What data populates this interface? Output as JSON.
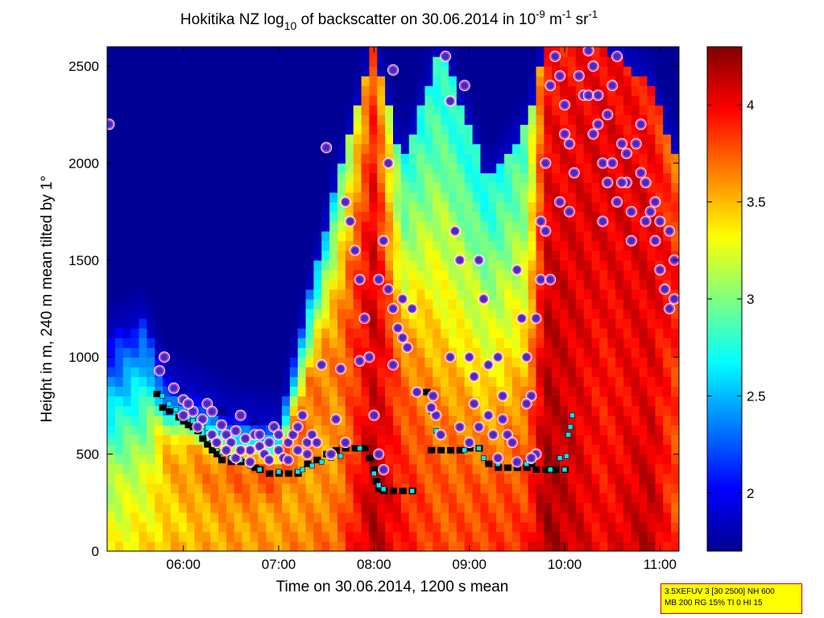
{
  "chart_data": {
    "type": "heatmap",
    "title": {
      "pre": "Hokitika NZ log",
      "sub": "10",
      "mid": " of backscatter on 30.06.2014 in 10",
      "sup1": "-9",
      "mid2": " m",
      "sup2": "-1",
      "mid3": " sr",
      "sup3": "-1"
    },
    "xlabel": "Time on 30.06.2014, 1200 s mean",
    "ylabel": "Height in m, 240 m mean tilted by 1°",
    "x_axis": {
      "range_hours": [
        5.2,
        11.2
      ],
      "tick_values": [
        6,
        7,
        8,
        9,
        10,
        11
      ],
      "tick_labels": [
        "06:00",
        "07:00",
        "08:00",
        "09:00",
        "10:00",
        "11:00"
      ]
    },
    "y_axis": {
      "range": [
        0,
        2600
      ],
      "tick_values": [
        0,
        500,
        1000,
        1500,
        2000,
        2500
      ],
      "tick_labels": [
        "0",
        "500",
        "1000",
        "1500",
        "2000",
        "2500"
      ]
    },
    "colorbar": {
      "range": [
        1.7,
        4.3
      ],
      "tick_values": [
        2,
        2.5,
        3,
        3.5,
        4
      ],
      "tick_labels": [
        "2",
        "2.5",
        "3",
        "3.5",
        "4"
      ],
      "colormap": "jet"
    },
    "field_columns": [
      {
        "t": 5.2,
        "base": [
          0.62,
          0.58,
          0.55,
          0.45,
          0.35,
          0.2,
          0.1
        ],
        "top": 1100
      },
      {
        "t": 5.6,
        "base": [
          0.66,
          0.62,
          0.58,
          0.5,
          0.4,
          0.3,
          0.12
        ],
        "top": 1200
      },
      {
        "t": 5.8,
        "base": [
          0.7,
          0.65,
          0.68,
          0.7,
          0.65,
          0.28,
          0.05
        ],
        "top": 900
      },
      {
        "t": 6.5,
        "base": [
          0.72,
          0.72,
          0.74,
          0.78,
          0.75,
          0.35,
          0.05
        ],
        "top": 700
      },
      {
        "t": 7.0,
        "base": [
          0.74,
          0.72,
          0.72,
          0.78,
          0.8,
          0.4,
          0.1
        ],
        "top": 650
      },
      {
        "t": 7.6,
        "base": [
          0.78,
          0.74,
          0.72,
          0.75,
          0.7,
          0.55,
          0.35
        ],
        "top": 1900
      },
      {
        "t": 8.0,
        "base": [
          0.95,
          0.95,
          0.92,
          0.92,
          0.9,
          0.85,
          0.8
        ],
        "top": 2600
      },
      {
        "t": 8.3,
        "base": [
          0.86,
          0.84,
          0.8,
          0.75,
          0.6,
          0.5,
          0.4
        ],
        "top": 2000
      },
      {
        "t": 8.7,
        "base": [
          0.8,
          0.78,
          0.72,
          0.62,
          0.55,
          0.45,
          0.4
        ],
        "top": 2600
      },
      {
        "t": 9.2,
        "base": [
          0.82,
          0.8,
          0.72,
          0.62,
          0.55,
          0.45,
          0.38
        ],
        "top": 1900
      },
      {
        "t": 9.6,
        "base": [
          0.84,
          0.8,
          0.75,
          0.65,
          0.58,
          0.5,
          0.45
        ],
        "top": 2200
      },
      {
        "t": 9.8,
        "base": [
          0.97,
          0.96,
          0.95,
          0.93,
          0.9,
          0.88,
          0.85
        ],
        "top": 2600
      },
      {
        "t": 10.4,
        "base": [
          0.88,
          0.86,
          0.86,
          0.88,
          0.9,
          0.9,
          0.88
        ],
        "top": 2600
      },
      {
        "t": 10.9,
        "base": [
          0.95,
          0.93,
          0.9,
          0.9,
          0.9,
          0.88,
          0.85
        ],
        "top": 2400
      },
      {
        "t": 11.2,
        "base": [
          0.8,
          0.78,
          0.8,
          0.82,
          0.85,
          0.8,
          0.75
        ],
        "top": 2000
      }
    ],
    "cloud_base_points": [
      [
        5.75,
        930
      ],
      [
        5.8,
        1000
      ],
      [
        5.9,
        840
      ],
      [
        6.0,
        780
      ],
      [
        6.1,
        720
      ],
      [
        6.2,
        680
      ],
      [
        6.25,
        760
      ],
      [
        6.3,
        720
      ],
      [
        6.4,
        650
      ],
      [
        6.45,
        600
      ],
      [
        6.5,
        560
      ],
      [
        6.55,
        620
      ],
      [
        6.6,
        700
      ],
      [
        6.65,
        580
      ],
      [
        6.7,
        520
      ],
      [
        6.75,
        600
      ],
      [
        6.8,
        540
      ],
      [
        6.85,
        500
      ],
      [
        6.9,
        560
      ],
      [
        6.95,
        640
      ],
      [
        7.0,
        520
      ],
      [
        7.05,
        480
      ],
      [
        7.1,
        560
      ],
      [
        7.15,
        600
      ],
      [
        7.2,
        520
      ],
      [
        7.25,
        700
      ],
      [
        7.3,
        560
      ],
      [
        7.35,
        600
      ],
      [
        7.45,
        960
      ],
      [
        7.5,
        2080
      ],
      [
        7.6,
        680
      ],
      [
        7.65,
        940
      ],
      [
        7.7,
        1800
      ],
      [
        7.75,
        1700
      ],
      [
        7.8,
        1550
      ],
      [
        7.85,
        1400
      ],
      [
        7.9,
        1200
      ],
      [
        7.95,
        1000
      ],
      [
        8.0,
        700
      ],
      [
        8.05,
        500
      ],
      [
        8.1,
        420
      ],
      [
        8.1,
        1600
      ],
      [
        8.15,
        2000
      ],
      [
        8.15,
        1350
      ],
      [
        8.2,
        1250
      ],
      [
        8.2,
        2480
      ],
      [
        8.25,
        1150
      ],
      [
        8.3,
        1100
      ],
      [
        8.35,
        1050
      ],
      [
        8.4,
        1250
      ],
      [
        8.62,
        800
      ],
      [
        8.65,
        700
      ],
      [
        8.7,
        600
      ],
      [
        8.75,
        2550
      ],
      [
        8.8,
        2320
      ],
      [
        8.85,
        1650
      ],
      [
        8.9,
        1500
      ],
      [
        8.95,
        2400
      ],
      [
        9.0,
        1000
      ],
      [
        9.05,
        900
      ],
      [
        9.1,
        1500
      ],
      [
        9.15,
        1300
      ],
      [
        9.2,
        700
      ],
      [
        9.25,
        600
      ],
      [
        9.3,
        1000
      ],
      [
        9.35,
        800
      ],
      [
        9.4,
        600
      ],
      [
        9.5,
        1450
      ],
      [
        9.55,
        1200
      ],
      [
        9.6,
        1000
      ],
      [
        9.65,
        800
      ],
      [
        9.7,
        500
      ],
      [
        9.75,
        1400
      ],
      [
        9.8,
        1650
      ],
      [
        9.85,
        2400
      ],
      [
        9.9,
        2550
      ],
      [
        9.95,
        2450
      ],
      [
        10.0,
        2300
      ],
      [
        10.05,
        2100
      ],
      [
        10.1,
        1950
      ],
      [
        10.15,
        2450
      ],
      [
        10.2,
        2350
      ],
      [
        10.25,
        2580
      ],
      [
        10.3,
        2500
      ],
      [
        10.35,
        2200
      ],
      [
        10.4,
        2000
      ],
      [
        10.45,
        1900
      ],
      [
        10.5,
        2400
      ],
      [
        10.55,
        2550
      ],
      [
        10.6,
        2100
      ],
      [
        10.65,
        1900
      ],
      [
        10.7,
        1750
      ],
      [
        10.75,
        2100
      ],
      [
        10.8,
        2200
      ],
      [
        10.85,
        1900
      ],
      [
        10.9,
        1750
      ],
      [
        10.95,
        1600
      ],
      [
        11.0,
        1450
      ],
      [
        11.05,
        1350
      ],
      [
        11.1,
        1250
      ],
      [
        11.15,
        1500
      ],
      [
        5.22,
        2200
      ]
    ],
    "cloud_base_points_dense": [
      [
        6.0,
        700
      ],
      [
        6.05,
        760
      ],
      [
        6.15,
        640
      ],
      [
        6.3,
        600
      ],
      [
        6.35,
        560
      ],
      [
        6.45,
        520
      ],
      [
        6.55,
        480
      ],
      [
        6.6,
        520
      ],
      [
        6.7,
        460
      ],
      [
        6.8,
        600
      ],
      [
        6.9,
        470
      ],
      [
        7.0,
        600
      ],
      [
        7.1,
        470
      ],
      [
        7.2,
        640
      ],
      [
        7.3,
        500
      ],
      [
        7.4,
        560
      ],
      [
        7.55,
        500
      ],
      [
        7.7,
        560
      ],
      [
        7.85,
        980
      ],
      [
        8.05,
        1400
      ],
      [
        8.2,
        960
      ],
      [
        8.3,
        1300
      ],
      [
        8.45,
        820
      ],
      [
        8.6,
        740
      ],
      [
        8.8,
        1000
      ],
      [
        8.9,
        640
      ],
      [
        9.0,
        560
      ],
      [
        9.05,
        760
      ],
      [
        9.1,
        640
      ],
      [
        9.2,
        960
      ],
      [
        9.3,
        480
      ],
      [
        9.35,
        680
      ],
      [
        9.45,
        560
      ],
      [
        9.5,
        460
      ],
      [
        9.6,
        760
      ],
      [
        9.65,
        480
      ],
      [
        9.7,
        1200
      ],
      [
        9.75,
        1700
      ],
      [
        9.8,
        2000
      ],
      [
        9.85,
        1400
      ],
      [
        9.95,
        1800
      ],
      [
        10.0,
        2150
      ],
      [
        10.05,
        1750
      ],
      [
        10.25,
        2350
      ],
      [
        10.3,
        2150
      ],
      [
        10.35,
        2350
      ],
      [
        10.4,
        1700
      ],
      [
        10.45,
        2250
      ],
      [
        10.5,
        2000
      ],
      [
        10.55,
        1800
      ],
      [
        10.6,
        1900
      ],
      [
        10.65,
        2050
      ],
      [
        10.7,
        1600
      ],
      [
        10.8,
        1950
      ],
      [
        10.85,
        1700
      ],
      [
        10.95,
        1800
      ],
      [
        11.0,
        1700
      ],
      [
        11.1,
        1650
      ],
      [
        11.15,
        1300
      ]
    ],
    "mixing_layer_black": [
      [
        5.72,
        810
      ],
      [
        5.78,
        740
      ],
      [
        5.85,
        720
      ],
      [
        5.95,
        690
      ],
      [
        6.0,
        670
      ],
      [
        6.05,
        650
      ],
      [
        6.1,
        640
      ],
      [
        6.15,
        620
      ],
      [
        6.2,
        580
      ],
      [
        6.25,
        550
      ],
      [
        6.3,
        520
      ],
      [
        6.35,
        500
      ],
      [
        6.4,
        470
      ],
      [
        6.5,
        460
      ],
      [
        6.6,
        460
      ],
      [
        6.7,
        450
      ],
      [
        6.75,
        430
      ],
      [
        6.8,
        420
      ],
      [
        6.9,
        400
      ],
      [
        7.0,
        400
      ],
      [
        7.1,
        400
      ],
      [
        7.2,
        400
      ],
      [
        7.3,
        450
      ],
      [
        7.4,
        470
      ],
      [
        7.5,
        500
      ],
      [
        7.6,
        520
      ],
      [
        7.7,
        530
      ],
      [
        7.8,
        530
      ],
      [
        7.9,
        530
      ],
      [
        7.95,
        480
      ],
      [
        8.0,
        420
      ],
      [
        8.02,
        360
      ],
      [
        8.05,
        320
      ],
      [
        8.1,
        310
      ],
      [
        8.2,
        310
      ],
      [
        8.3,
        310
      ],
      [
        8.4,
        310
      ],
      [
        8.55,
        820
      ],
      [
        8.6,
        520
      ],
      [
        8.7,
        520
      ],
      [
        8.8,
        520
      ],
      [
        8.9,
        520
      ],
      [
        9.0,
        530
      ],
      [
        9.1,
        530
      ],
      [
        9.2,
        450
      ],
      [
        9.3,
        430
      ],
      [
        9.4,
        430
      ],
      [
        9.5,
        430
      ],
      [
        9.6,
        430
      ],
      [
        9.65,
        450
      ],
      [
        9.7,
        420
      ],
      [
        9.8,
        420
      ],
      [
        9.9,
        420
      ],
      [
        10.0,
        420
      ]
    ],
    "mixing_layer_cyan": [
      [
        5.78,
        800
      ],
      [
        5.85,
        760
      ],
      [
        5.92,
        730
      ],
      [
        6.0,
        700
      ],
      [
        6.05,
        690
      ],
      [
        6.1,
        670
      ],
      [
        6.15,
        650
      ],
      [
        6.2,
        640
      ],
      [
        6.25,
        610
      ],
      [
        6.3,
        570
      ],
      [
        6.35,
        540
      ],
      [
        6.4,
        510
      ],
      [
        6.5,
        480
      ],
      [
        6.6,
        470
      ],
      [
        6.7,
        440
      ],
      [
        6.8,
        420
      ],
      [
        7.0,
        410
      ],
      [
        7.2,
        410
      ],
      [
        7.25,
        420
      ],
      [
        7.35,
        440
      ],
      [
        7.45,
        460
      ],
      [
        7.55,
        480
      ],
      [
        7.65,
        490
      ],
      [
        7.85,
        530
      ],
      [
        8.0,
        400
      ],
      [
        8.05,
        340
      ],
      [
        8.1,
        320
      ],
      [
        8.4,
        310
      ],
      [
        8.45,
        820
      ],
      [
        8.6,
        720
      ],
      [
        8.65,
        620
      ],
      [
        8.7,
        600
      ],
      [
        8.95,
        520
      ],
      [
        9.1,
        530
      ],
      [
        9.15,
        480
      ],
      [
        9.3,
        450
      ],
      [
        9.6,
        450
      ],
      [
        9.65,
        460
      ],
      [
        9.85,
        420
      ],
      [
        9.95,
        480
      ],
      [
        10.0,
        420
      ],
      [
        10.02,
        490
      ],
      [
        10.04,
        600
      ],
      [
        10.06,
        640
      ],
      [
        10.08,
        700
      ]
    ],
    "info_lines": [
      "3.5XEFUV 3 [30 2500] NH 600",
      "MB 200 RG 15% TI 0 HI 15"
    ]
  }
}
